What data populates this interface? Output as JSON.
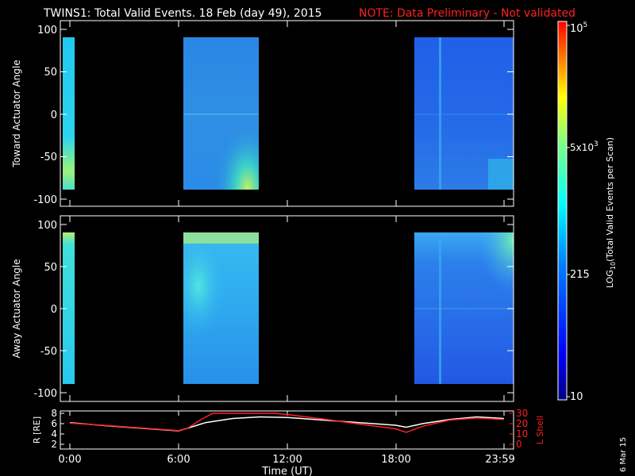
{
  "header": {
    "title": "TWINS1: Total Valid Events. 18 Feb (day  49), 2015",
    "note": "NOTE: Data Preliminary - Not validated"
  },
  "footer": {
    "date_stamp": "6 Mar 15"
  },
  "colors": {
    "note": "#ff2020",
    "orbit_r": "#ffffff",
    "orbit_lshell": "#ff2020"
  },
  "chart_data": [
    {
      "type": "heatmap",
      "ylabel": "Toward Actuator Angle",
      "ylim": [
        -110,
        110
      ],
      "yticks": [
        "100",
        "50",
        "0",
        "-50",
        "-100"
      ],
      "xlim": [
        0,
        24
      ],
      "coverage_hours": [
        [
          0,
          0.25
        ],
        [
          6.5,
          10.3
        ],
        [
          18.6,
          23.99
        ]
      ]
    },
    {
      "type": "heatmap",
      "ylabel": "Away Actuator Angle",
      "ylim": [
        -110,
        110
      ],
      "yticks": [
        "100",
        "50",
        "0",
        "-50",
        "-100"
      ],
      "xlim": [
        0,
        24
      ],
      "coverage_hours": [
        [
          0,
          0.25
        ],
        [
          6.5,
          10.3
        ],
        [
          18.6,
          23.99
        ]
      ]
    },
    {
      "type": "line",
      "ylabel": "R [RE]",
      "ylabel_right": "L Shell",
      "yticks_left": [
        "8",
        "6",
        "4",
        "2"
      ],
      "yticks_right": [
        "30",
        "20",
        "10",
        "0"
      ],
      "xlabel": "Time (UT)",
      "xticks": [
        "0:00",
        "6:00",
        "12:00",
        "18:00",
        "23:59"
      ],
      "xlim": [
        0,
        24
      ],
      "series": [
        {
          "color": "white",
          "x": [
            0,
            2,
            4,
            6,
            6.5,
            7.5,
            9,
            10.5,
            12,
            14,
            16,
            18,
            18.6,
            19.5,
            21,
            22.5,
            23.99
          ],
          "y": [
            6.2,
            5.6,
            5.1,
            4.6,
            5.1,
            6.2,
            7.0,
            7.3,
            7.2,
            6.7,
            6.2,
            5.7,
            5.3,
            6.0,
            6.8,
            7.3,
            7.0
          ]
        },
        {
          "color": "red",
          "x": [
            0,
            2,
            4,
            6,
            6.5,
            7.3,
            7.9,
            11.3,
            12.2,
            14,
            16,
            18,
            18.6,
            19.5,
            21,
            22.5,
            23.99
          ],
          "y": [
            20.5,
            18.3,
            15.8,
            13.2,
            15.5,
            24.5,
            30,
            30,
            28.5,
            24.5,
            19.5,
            15.0,
            11.5,
            17.5,
            23.5,
            25.5,
            24.0
          ]
        }
      ]
    }
  ],
  "colorbar": {
    "label": "LOG10(Total Valid Events per Scan)",
    "ticks": [
      "10^5",
      "5x10^3",
      "215",
      "10"
    ],
    "tick_values": [
      100000,
      5000,
      215,
      10
    ],
    "range": [
      10,
      100000
    ]
  }
}
